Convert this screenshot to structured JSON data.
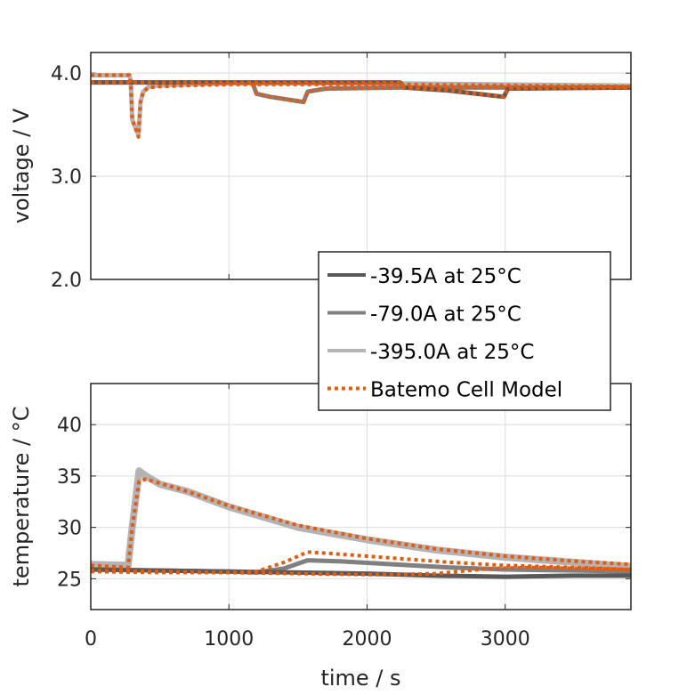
{
  "chart_data": [
    {
      "type": "line",
      "id": "voltage",
      "title": "",
      "xlabel": "",
      "ylabel": "voltage / V",
      "xlim": [
        0,
        3910
      ],
      "ylim": [
        2.0,
        4.2
      ],
      "xticks": [
        0,
        1000,
        2000,
        3000
      ],
      "xtick_labels": [],
      "yticks": [
        2.0,
        3.0,
        4.0
      ],
      "ytick_labels": [
        "2.0",
        "3.0",
        "4.0"
      ],
      "grid": true,
      "legend_position": "bottom-right",
      "series": [
        {
          "name": "-39.5A at 25°C",
          "color": "#595959",
          "style": "solid",
          "x": [
            0,
            2240,
            2270,
            2600,
            2990,
            3020,
            3910
          ],
          "y": [
            3.91,
            3.91,
            3.86,
            3.83,
            3.77,
            3.85,
            3.86
          ]
        },
        {
          "name": "-79.0A at 25°C",
          "color": "#808080",
          "style": "solid",
          "x": [
            0,
            1170,
            1200,
            1300,
            1540,
            1570,
            1700,
            2240,
            3910
          ],
          "y": [
            3.91,
            3.91,
            3.8,
            3.77,
            3.72,
            3.82,
            3.85,
            3.86,
            3.86
          ]
        },
        {
          "name": "-395.0A at 25°C",
          "color": "#b3b3b3",
          "style": "solid",
          "x": [
            0,
            280,
            290,
            300,
            320,
            345,
            360,
            380,
            420,
            500,
            700,
            1000,
            2240,
            3910
          ],
          "y": [
            3.98,
            3.98,
            3.91,
            3.55,
            3.48,
            3.4,
            3.72,
            3.82,
            3.87,
            3.88,
            3.89,
            3.9,
            3.9,
            3.88
          ]
        },
        {
          "name": "Batemo Cell Model",
          "color": "#e8590c",
          "style": "dotted",
          "x": [
            0,
            280,
            290,
            300,
            320,
            345,
            360,
            380,
            420,
            500,
            700,
            1000,
            2240,
            3910
          ],
          "y": [
            3.98,
            3.98,
            3.91,
            3.55,
            3.48,
            3.38,
            3.72,
            3.82,
            3.86,
            3.87,
            3.88,
            3.89,
            3.89,
            3.87
          ]
        },
        {
          "name": "Batemo Cell Model (79.0A)",
          "legend": false,
          "color": "#e8590c",
          "style": "dotted",
          "x": [
            0,
            1170,
            1200,
            1300,
            1540,
            1570,
            1700,
            2240,
            3910
          ],
          "y": [
            3.91,
            3.91,
            3.8,
            3.77,
            3.72,
            3.82,
            3.85,
            3.86,
            3.86
          ]
        },
        {
          "name": "Batemo Cell Model (39.5A)",
          "legend": false,
          "color": "#e8590c",
          "style": "dotted",
          "x": [
            0,
            2240,
            2270,
            2600,
            2990,
            3020,
            3910
          ],
          "y": [
            3.91,
            3.91,
            3.86,
            3.83,
            3.77,
            3.85,
            3.86
          ]
        }
      ]
    },
    {
      "type": "line",
      "id": "temperature",
      "title": "",
      "xlabel": "time / s",
      "ylabel": "temperature / °C",
      "xlim": [
        0,
        3910
      ],
      "ylim": [
        22,
        44
      ],
      "xticks": [
        0,
        1000,
        2000,
        3000
      ],
      "xtick_labels": [
        "0",
        "1000",
        "2000",
        "3000"
      ],
      "yticks": [
        25,
        30,
        35,
        40
      ],
      "ytick_labels": [
        "25",
        "30",
        "35",
        "40"
      ],
      "grid": true,
      "series": [
        {
          "name": "-39.5A at 25°C",
          "color": "#595959",
          "style": "solid",
          "x": [
            0,
            500,
            1000,
            1500,
            2000,
            2500,
            3000,
            3500,
            3910
          ],
          "y": [
            25.9,
            25.8,
            25.7,
            25.6,
            25.5,
            25.3,
            25.2,
            25.3,
            25.3
          ]
        },
        {
          "name": "-79.0A at 25°C",
          "color": "#808080",
          "style": "solid",
          "x": [
            0,
            500,
            1000,
            1200,
            1400,
            1570,
            1800,
            2200,
            2600,
            3000,
            3500,
            3910
          ],
          "y": [
            25.9,
            25.8,
            25.7,
            25.6,
            26.0,
            26.8,
            26.7,
            26.4,
            26.1,
            25.9,
            25.8,
            25.7
          ]
        },
        {
          "name": "-395.0A at 25°C",
          "color": "#b3b3b3",
          "style": "solid",
          "x": [
            0,
            270,
            300,
            350,
            400,
            500,
            700,
            1000,
            1500,
            2000,
            2500,
            3000,
            3500,
            3910
          ],
          "y": [
            26.4,
            26.3,
            30.0,
            35.5,
            35.0,
            34.2,
            33.5,
            32.0,
            30.0,
            28.8,
            27.8,
            27.1,
            26.6,
            26.2
          ]
        },
        {
          "name": "Batemo Cell Model",
          "color": "#e8590c",
          "style": "dotted",
          "x": [
            0,
            270,
            300,
            350,
            400,
            500,
            700,
            1000,
            1500,
            2000,
            2500,
            3000,
            3500,
            3910
          ],
          "y": [
            26.3,
            26.1,
            30.0,
            34.5,
            34.7,
            34.3,
            33.5,
            32.1,
            30.2,
            28.9,
            27.9,
            27.2,
            26.7,
            26.4
          ]
        },
        {
          "name": "Batemo Cell Model (79.0A)",
          "legend": false,
          "color": "#e8590c",
          "style": "dotted",
          "x": [
            0,
            500,
            1000,
            1200,
            1400,
            1570,
            1800,
            2200,
            2600,
            3000,
            3500,
            3910
          ],
          "y": [
            25.8,
            25.7,
            25.6,
            25.7,
            26.6,
            27.6,
            27.4,
            27.0,
            26.6,
            26.3,
            26.1,
            25.9
          ]
        },
        {
          "name": "Batemo Cell Model (39.5A)",
          "legend": false,
          "color": "#e8590c",
          "style": "dotted",
          "x": [
            0,
            500,
            1000,
            1500,
            2000,
            2200,
            2500,
            2900,
            3200,
            3600,
            3910
          ],
          "y": [
            25.7,
            25.6,
            25.6,
            25.5,
            25.4,
            25.4,
            25.5,
            26.0,
            26.1,
            26.0,
            25.9
          ]
        }
      ]
    }
  ],
  "legend": {
    "entries": [
      {
        "label": "-39.5A at 25°C",
        "color": "#595959",
        "style": "solid"
      },
      {
        "label": "-79.0A at 25°C",
        "color": "#808080",
        "style": "solid"
      },
      {
        "label": "-395.0A at 25°C",
        "color": "#b3b3b3",
        "style": "solid"
      },
      {
        "label": "Batemo Cell Model",
        "color": "#e8590c",
        "style": "dotted"
      }
    ]
  }
}
